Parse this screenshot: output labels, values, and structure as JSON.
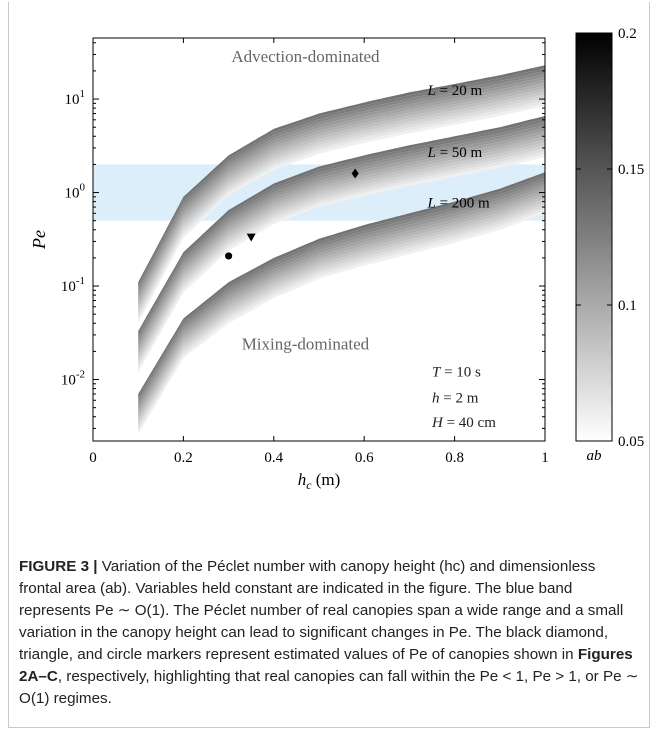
{
  "chart_data": {
    "type": "line",
    "xlabel": "h_c (m)",
    "xlabel_main": "h",
    "xlabel_sub": "c",
    "xlabel_unit": " (m)",
    "ylabel": "Pe",
    "x_scale": "linear",
    "y_scale": "log",
    "xlim": [
      0,
      1
    ],
    "ylim": [
      0.0022,
      45
    ],
    "x_ticks": [
      0,
      0.2,
      0.4,
      0.6,
      0.8,
      1
    ],
    "x_tick_labels": [
      "0",
      "0.2",
      "0.4",
      "0.6",
      "0.8",
      "1"
    ],
    "y_ticks": [
      {
        "value": 0.01,
        "base": "10",
        "exp": "-2"
      },
      {
        "value": 0.1,
        "base": "10",
        "exp": "-1"
      },
      {
        "value": 1,
        "base": "10",
        "exp": "0"
      },
      {
        "value": 10,
        "base": "10",
        "exp": "1"
      }
    ],
    "band": {
      "y_min": 0.5,
      "y_max": 2,
      "color": "#ddeefb"
    },
    "series": [
      {
        "name": "L = 20 m",
        "label_main": "L",
        "label_rest": " = 20 m",
        "label_at": {
          "x": 0.74,
          "y": 11
        },
        "x": [
          0.1,
          0.2,
          0.3,
          0.4,
          0.5,
          0.6,
          0.7,
          0.8,
          0.9,
          1.0
        ],
        "upper": [
          0.11,
          0.9,
          2.5,
          4.8,
          7.0,
          9.2,
          11.8,
          14.5,
          18.0,
          23.0
        ],
        "lower": [
          0.04,
          0.33,
          0.93,
          1.75,
          2.6,
          3.4,
          4.3,
          5.3,
          6.6,
          8.4
        ]
      },
      {
        "name": "L = 50 m",
        "label_main": "L",
        "label_rest": " = 50 m",
        "label_at": {
          "x": 0.74,
          "y": 2.4
        },
        "x": [
          0.1,
          0.2,
          0.3,
          0.4,
          0.5,
          0.6,
          0.7,
          0.8,
          0.9,
          1.0
        ],
        "upper": [
          0.033,
          0.23,
          0.65,
          1.25,
          1.9,
          2.5,
          3.2,
          4.0,
          5.0,
          6.6
        ],
        "lower": [
          0.012,
          0.085,
          0.24,
          0.46,
          0.7,
          0.92,
          1.18,
          1.47,
          1.84,
          2.4
        ]
      },
      {
        "name": "L = 200 m",
        "label_main": "L",
        "label_rest": " = 200 m",
        "label_at": {
          "x": 0.74,
          "y": 0.69
        },
        "x": [
          0.1,
          0.2,
          0.3,
          0.4,
          0.5,
          0.6,
          0.7,
          0.8,
          0.9,
          1.0
        ],
        "upper": [
          0.007,
          0.045,
          0.11,
          0.2,
          0.32,
          0.45,
          0.6,
          0.8,
          1.1,
          1.65
        ],
        "lower": [
          0.0026,
          0.017,
          0.04,
          0.074,
          0.12,
          0.165,
          0.22,
          0.29,
          0.4,
          0.6
        ]
      }
    ],
    "markers": [
      {
        "shape": "circle",
        "x": 0.3,
        "y": 0.21
      },
      {
        "shape": "triangle",
        "x": 0.35,
        "y": 0.33
      },
      {
        "shape": "diamond",
        "x": 0.58,
        "y": 1.6
      }
    ],
    "annotations": [
      {
        "text": "Advection-dominated",
        "x": 0.47,
        "y": 25
      },
      {
        "text": "Mixing-dominated",
        "x": 0.47,
        "y": 0.021
      }
    ],
    "params": [
      {
        "main": "T",
        "rest": " = 10 s",
        "x": 0.75,
        "y": 0.0108
      },
      {
        "main": "h",
        "rest": " = 2 m",
        "x": 0.75,
        "y": 0.0057
      },
      {
        "main": "H",
        "rest": " = 40 cm",
        "x": 0.75,
        "y": 0.0031
      }
    ],
    "colorbar": {
      "min": 0.05,
      "max": 0.2,
      "ticks": [
        0.05,
        0.1,
        0.15,
        0.2
      ],
      "tick_labels": [
        "0.05",
        "0.1",
        "0.15",
        "0.2"
      ],
      "label": "ab",
      "color_low": "#ffffff",
      "color_high": "#000000"
    }
  },
  "caption": {
    "figure_label": "FIGURE 3 |",
    "text": "Variation of the Péclet number with canopy height (hc) and dimensionless frontal area (ab). Variables held constant are indicated in the figure. The blue band represents Pe ∼ O(1). The Péclet number of real canopies span a wide range and a small variation in the canopy height can lead to significant changes in Pe. The black diamond, triangle, and circle markers represent estimated values of Pe of canopies shown in ",
    "figures_ref": "Figures 2A–C",
    "text_end": ", respectively, highlighting that real canopies can fall within the Pe < 1, Pe > 1, or Pe ∼ O(1) regimes."
  }
}
